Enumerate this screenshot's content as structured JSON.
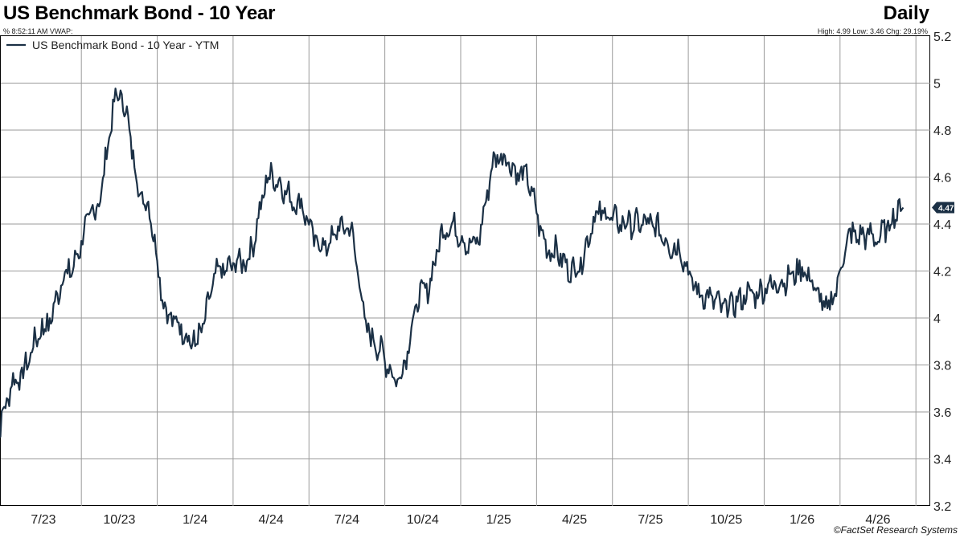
{
  "header": {
    "title": "US Benchmark Bond - 10 Year",
    "frequency": "Daily",
    "subinfo": "% 8:52:11 AM VWAP:",
    "stats": "High: 4.99 Low: 3.46 Chg: 29.19%"
  },
  "footer": {
    "credit": "©FactSet Research Systems"
  },
  "chart_data": {
    "type": "line",
    "title": "US Benchmark Bond - 10 Year",
    "xlabel": "",
    "ylabel": "",
    "ylim": [
      3.2,
      5.2
    ],
    "yticks": [
      3.2,
      3.4,
      3.6,
      3.8,
      4,
      4.2,
      4.4,
      4.6,
      4.8,
      5,
      5.2
    ],
    "ytick_labels": [
      "3.2",
      "3.4",
      "3.6",
      "3.8",
      "4",
      "4.2",
      "4.4",
      "4.6",
      "4.8",
      "5",
      "5.2"
    ],
    "xticks": [
      "7/23",
      "10/23",
      "1/24",
      "4/24",
      "7/24",
      "10/24",
      "1/25",
      "4/25",
      "7/25",
      "10/25",
      "1/26",
      "4/26"
    ],
    "x_start": "5/23",
    "y_axis_position": "right",
    "grid": true,
    "legend_position": "top-left",
    "line_color": "#1b3045",
    "last_value_label": "4.47",
    "series": [
      {
        "name": "US Benchmark Bond - 10 Year - YTM",
        "x": [
          "5/23",
          "6/23",
          "7/23",
          "8/23",
          "9/23",
          "10/23",
          "11/23",
          "12/23",
          "1/24",
          "2/24",
          "3/24",
          "4/24",
          "5/24",
          "6/24",
          "7/24",
          "8/24",
          "9/24",
          "10/24",
          "11/24",
          "12/24",
          "1/25",
          "2/25",
          "3/25",
          "4/25",
          "5/25",
          "6/25",
          "7/25",
          "8/25",
          "9/25",
          "10/25",
          "11/25",
          "12/25",
          "1/26",
          "2/26",
          "3/26",
          "4/26",
          "5/26"
        ],
        "values": [
          3.5,
          3.75,
          3.95,
          4.2,
          4.45,
          4.95,
          4.5,
          4.0,
          3.9,
          4.2,
          4.25,
          4.6,
          4.5,
          4.3,
          4.4,
          3.9,
          3.75,
          4.1,
          4.4,
          4.3,
          4.7,
          4.6,
          4.3,
          4.2,
          4.45,
          4.4,
          4.4,
          4.3,
          4.1,
          4.05,
          4.1,
          4.15,
          4.2,
          4.05,
          4.35,
          4.35,
          4.47
        ]
      }
    ]
  }
}
